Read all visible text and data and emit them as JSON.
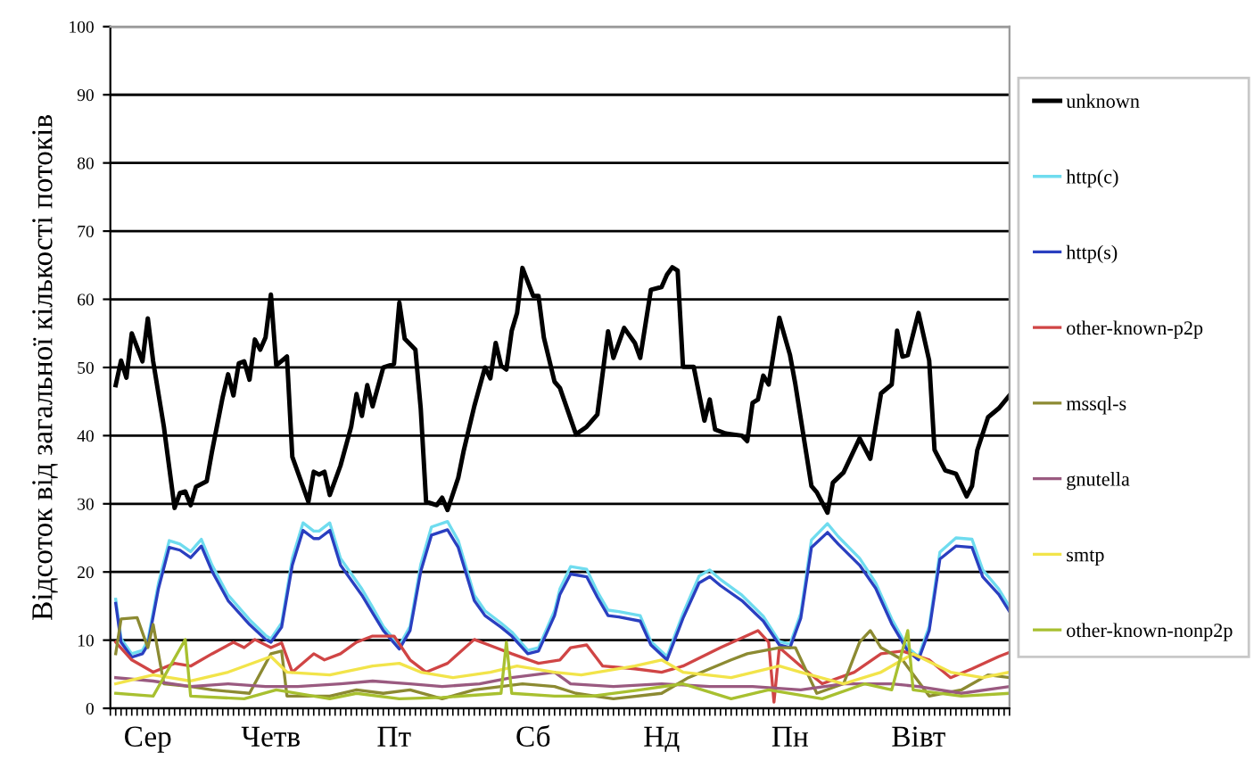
{
  "chart_data": {
    "type": "line",
    "ylabel": "Відсоток від загальної кількості потоків",
    "categories": [
      null,
      null,
      null,
      null,
      null,
      null,
      null,
      "Сер",
      null,
      null,
      null,
      null,
      null,
      null,
      null,
      null,
      null,
      null,
      null,
      null,
      null,
      null,
      null,
      null,
      null,
      null,
      null,
      null,
      null,
      null,
      "Четв",
      null,
      null,
      null,
      null,
      null,
      null,
      null,
      null,
      null,
      null,
      null,
      null,
      null,
      null,
      null,
      null,
      null,
      null,
      null,
      null,
      null,
      null,
      "Пт",
      null,
      null,
      null,
      null,
      null,
      null,
      null,
      null,
      null,
      null,
      null,
      null,
      null,
      null,
      null,
      null,
      null,
      null,
      null,
      null,
      null,
      null,
      null,
      null,
      null,
      "Сб",
      null,
      null,
      null,
      null,
      null,
      null,
      null,
      null,
      null,
      null,
      null,
      null,
      null,
      null,
      null,
      null,
      null,
      null,
      null,
      null,
      null,
      null,
      null,
      "Нд",
      null,
      null,
      null,
      null,
      null,
      null,
      null,
      null,
      null,
      null,
      null,
      null,
      null,
      null,
      null,
      null,
      null,
      null,
      null,
      null,
      null,
      null,
      null,
      "Пн",
      null,
      null,
      null,
      null,
      null,
      null,
      null,
      null,
      null,
      null,
      null,
      null,
      null,
      null,
      null,
      null,
      null,
      null,
      null,
      null,
      null,
      null,
      null,
      "Вівт",
      null,
      null,
      null,
      null,
      null,
      null,
      null,
      null,
      null,
      null,
      null,
      null,
      null,
      null,
      null,
      null,
      null
    ],
    "ylim": [
      0,
      100
    ],
    "yticks": [
      0,
      10,
      20,
      30,
      40,
      50,
      60,
      70,
      80,
      90,
      100
    ],
    "grid": "y",
    "legend": "right",
    "marker": "none",
    "line_style": "solid",
    "series": [
      {
        "name": "unknown",
        "color": "#000000",
        "values": [
          null,
          47.4,
          51,
          48.5,
          55,
          null,
          50.9,
          57.2,
          50.9,
          null,
          41.3,
          null,
          29.4,
          31.6,
          31.8,
          29.8,
          32.5,
          null,
          33.3,
          37.7,
          null,
          45.7,
          49,
          45.9,
          50.6,
          50.9,
          48.2,
          54.1,
          52.6,
          54.4,
          60.7,
          50.3,
          null,
          51.6,
          36.9,
          null,
          null,
          30.3,
          34.7,
          34.3,
          34.7,
          31.3,
          null,
          35.6,
          null,
          41.3,
          46.1,
          42.9,
          47.4,
          44.3,
          null,
          50,
          null,
          50.5,
          59.5,
          54.2,
          null,
          52.6,
          43.9,
          30.3,
          null,
          29.8,
          30.9,
          29.1,
          null,
          33.8,
          37.7,
          null,
          44.3,
          null,
          50,
          48.4,
          53.6,
          50.3,
          49.7,
          55.4,
          58,
          64.6,
          null,
          60.5,
          60.5,
          54.4,
          null,
          47.9,
          47,
          null,
          null,
          40.2,
          null,
          41.3,
          null,
          43.1,
          null,
          55.3,
          51.4,
          null,
          55.8,
          null,
          53.6,
          51.4,
          null,
          61.4,
          null,
          61.8,
          63.6,
          64.7,
          64.2,
          50.1,
          null,
          50.1,
          null,
          42.2,
          45.3,
          40.9,
          null,
          40.3,
          null,
          null,
          40,
          39.2,
          44.8,
          45.3,
          48.8,
          47.5,
          null,
          57.3,
          null,
          51.8,
          47.5,
          null,
          null,
          32.6,
          31.7,
          null,
          28.7,
          33.1,
          null,
          34.6,
          null,
          null,
          39.6,
          null,
          36.6,
          null,
          46.2,
          null,
          47.5,
          55.4,
          51.6,
          51.8,
          null,
          58,
          null,
          51,
          37.9,
          null,
          34.9,
          null,
          34.4,
          null,
          31.1,
          32.6,
          37.9,
          null,
          42.7,
          null,
          44,
          null,
          45.9
        ]
      },
      {
        "name": "http(c)",
        "color": "#6fdcef",
        "values": [
          null,
          16,
          10.2,
          null,
          8,
          null,
          8.5,
          9.9,
          null,
          18.4,
          null,
          24.6,
          null,
          24.1,
          null,
          23,
          null,
          24.8,
          null,
          21,
          null,
          null,
          16.6,
          null,
          null,
          null,
          13,
          null,
          null,
          10.7,
          10.2,
          null,
          12.5,
          null,
          22,
          null,
          27.2,
          null,
          26,
          26,
          null,
          27.2,
          null,
          22,
          null,
          null,
          null,
          17.5,
          null,
          14.8,
          null,
          12,
          null,
          null,
          9.2,
          null,
          12,
          null,
          21.1,
          null,
          26.6,
          null,
          null,
          27.4,
          null,
          24.6,
          null,
          null,
          16.6,
          null,
          14.3,
          null,
          null,
          12.5,
          null,
          11.2,
          null,
          null,
          8.5,
          null,
          8.9,
          null,
          null,
          14.3,
          17.5,
          null,
          20.8,
          null,
          null,
          20.4,
          null,
          17.1,
          null,
          14.4,
          null,
          14.2,
          null,
          null,
          null,
          13.6,
          null,
          9.8,
          null,
          null,
          7.6,
          null,
          null,
          13.9,
          null,
          null,
          19.4,
          null,
          20.3,
          null,
          18.9,
          null,
          null,
          null,
          16.6,
          null,
          null,
          null,
          13.5,
          null,
          null,
          9.8,
          null,
          9.4,
          null,
          13.9,
          null,
          24.7,
          null,
          null,
          27.1,
          null,
          25.2,
          null,
          null,
          null,
          22,
          null,
          null,
          18.4,
          null,
          null,
          13.1,
          null,
          null,
          8.9,
          null,
          7.6,
          null,
          12,
          null,
          22.9,
          null,
          null,
          25,
          null,
          null,
          24.8,
          null,
          20.3,
          null,
          null,
          17.5,
          null,
          14.9
        ]
      },
      {
        "name": "http(s)",
        "color": "#2a3fc0",
        "values": [
          null,
          15.4,
          9.7,
          null,
          7.5,
          null,
          8,
          9.3,
          null,
          17.6,
          null,
          23.6,
          null,
          23.2,
          null,
          22.1,
          null,
          23.8,
          null,
          20.1,
          null,
          null,
          15.8,
          null,
          null,
          null,
          12.3,
          null,
          null,
          10.1,
          9.7,
          null,
          11.9,
          null,
          21,
          null,
          26.1,
          null,
          24.9,
          24.9,
          null,
          26.1,
          null,
          21,
          null,
          null,
          null,
          16.6,
          null,
          14,
          null,
          11.4,
          null,
          null,
          8.7,
          null,
          11.4,
          null,
          20.1,
          null,
          25.4,
          null,
          null,
          26.2,
          null,
          23.6,
          null,
          null,
          15.8,
          null,
          13.6,
          null,
          null,
          11.9,
          null,
          10.6,
          null,
          null,
          8,
          null,
          8.4,
          null,
          null,
          13.6,
          16.7,
          null,
          19.7,
          null,
          null,
          19.3,
          null,
          16.3,
          null,
          13.6,
          null,
          13.4,
          null,
          null,
          null,
          12.8,
          null,
          9.3,
          null,
          null,
          7.1,
          null,
          null,
          13.2,
          null,
          null,
          18.4,
          null,
          19.3,
          null,
          18,
          null,
          null,
          null,
          15.8,
          null,
          null,
          null,
          12.8,
          null,
          null,
          9.3,
          null,
          8.9,
          null,
          13.2,
          null,
          23.6,
          null,
          null,
          25.8,
          null,
          24.1,
          null,
          null,
          null,
          21,
          null,
          null,
          17.6,
          null,
          null,
          12.4,
          null,
          null,
          8.4,
          null,
          7.1,
          null,
          11.4,
          null,
          21.9,
          null,
          null,
          23.8,
          null,
          null,
          23.6,
          null,
          19.3,
          null,
          null,
          16.7,
          null,
          14.2
        ]
      },
      {
        "name": "other-known-p2p",
        "color": "#d04545",
        "values": [
          null,
          9.7,
          null,
          null,
          7.1,
          null,
          null,
          null,
          5.3,
          null,
          null,
          null,
          6.6,
          null,
          null,
          6.2,
          null,
          null,
          null,
          8,
          null,
          null,
          null,
          9.7,
          null,
          8.9,
          null,
          10.1,
          null,
          null,
          8.9,
          null,
          9.6,
          null,
          5.3,
          null,
          null,
          null,
          8,
          null,
          7.1,
          null,
          null,
          8,
          null,
          null,
          9.7,
          null,
          null,
          10.6,
          null,
          null,
          null,
          10.6,
          null,
          null,
          7.1,
          null,
          null,
          5.3,
          null,
          null,
          null,
          6.6,
          null,
          null,
          null,
          null,
          10.1,
          null,
          null,
          null,
          8.9,
          null,
          null,
          8,
          null,
          null,
          null,
          null,
          6.6,
          null,
          null,
          null,
          7.1,
          null,
          8.9,
          null,
          null,
          9.3,
          null,
          null,
          6.2,
          null,
          null,
          null,
          null,
          null,
          5.8,
          null,
          null,
          null,
          null,
          5.3,
          null,
          null,
          null,
          6.2,
          null,
          null,
          null,
          null,
          null,
          null,
          8.9,
          null,
          null,
          null,
          null,
          null,
          null,
          11.4,
          null,
          9.7,
          0.9,
          8.9,
          null,
          null,
          null,
          6.2,
          null,
          null,
          null,
          3.6,
          null,
          null,
          null,
          null,
          null,
          5.3,
          null,
          null,
          null,
          null,
          8,
          null,
          null,
          null,
          8.4,
          null,
          null,
          null,
          null,
          7.1,
          null,
          null,
          null,
          4.5,
          null,
          null,
          null,
          5.8,
          null,
          null,
          null,
          null,
          7.6,
          null,
          8.2
        ]
      },
      {
        "name": "mssql-s",
        "color": "#8c8a32",
        "values": [
          null,
          8,
          13.1,
          null,
          null,
          13.3,
          null,
          8.9,
          12.3,
          null,
          3.6,
          null,
          null,
          null,
          null,
          3.2,
          null,
          null,
          null,
          2.7,
          null,
          null,
          null,
          null,
          null,
          null,
          2.2,
          null,
          null,
          null,
          8,
          null,
          8.4,
          1.8,
          null,
          null,
          null,
          null,
          null,
          null,
          null,
          1.8,
          null,
          null,
          null,
          null,
          2.7,
          null,
          null,
          null,
          null,
          2.2,
          null,
          null,
          null,
          null,
          2.7,
          null,
          null,
          null,
          null,
          null,
          1.4,
          null,
          null,
          null,
          null,
          null,
          2.7,
          null,
          null,
          null,
          null,
          3.2,
          null,
          null,
          null,
          3.6,
          null,
          null,
          null,
          null,
          null,
          3.2,
          null,
          null,
          null,
          2.2,
          null,
          null,
          null,
          null,
          null,
          null,
          1.4,
          null,
          null,
          null,
          null,
          null,
          null,
          null,
          null,
          2.2,
          null,
          null,
          null,
          null,
          4.5,
          null,
          null,
          null,
          null,
          null,
          null,
          null,
          7.1,
          null,
          null,
          8,
          null,
          null,
          null,
          null,
          null,
          8.9,
          null,
          null,
          8.9,
          null,
          null,
          null,
          2.2,
          null,
          null,
          null,
          null,
          3.6,
          null,
          null,
          9.7,
          null,
          11.4,
          null,
          8.9,
          null,
          null,
          null,
          7.1,
          null,
          null,
          null,
          null,
          1.8,
          null,
          null,
          null,
          null,
          null,
          2.7,
          null,
          null,
          null,
          null,
          4.9,
          null,
          null,
          null,
          4.5
        ]
      },
      {
        "name": "gnutella",
        "color": "#9a5a80",
        "values": [
          null,
          4.5,
          null,
          null,
          null,
          null,
          null,
          null,
          4,
          null,
          null,
          null,
          null,
          null,
          null,
          3.2,
          null,
          null,
          null,
          null,
          null,
          null,
          3.6,
          null,
          null,
          null,
          null,
          null,
          null,
          3.2,
          null,
          null,
          null,
          null,
          null,
          3.2,
          null,
          null,
          null,
          null,
          null,
          null,
          null,
          3.6,
          null,
          null,
          null,
          null,
          null,
          4,
          null,
          null,
          null,
          null,
          null,
          null,
          3.6,
          null,
          null,
          null,
          null,
          null,
          3.2,
          null,
          null,
          null,
          null,
          null,
          null,
          3.6,
          null,
          null,
          null,
          null,
          null,
          4.5,
          null,
          null,
          null,
          null,
          null,
          null,
          null,
          5.3,
          null,
          null,
          3.6,
          null,
          null,
          null,
          null,
          null,
          null,
          null,
          3.2,
          null,
          null,
          null,
          null,
          null,
          null,
          null,
          null,
          3.6,
          null,
          null,
          null,
          null,
          null,
          null,
          null,
          null,
          3.2,
          null,
          null,
          null,
          null,
          null,
          null,
          null,
          3.2,
          null,
          null,
          null,
          null,
          null,
          null,
          null,
          null,
          2.7,
          null,
          null,
          null,
          null,
          null,
          null,
          null,
          3.6,
          null,
          null,
          null,
          null,
          null,
          null,
          null,
          null,
          3.6,
          null,
          null,
          null,
          null,
          3.2,
          null,
          null,
          null,
          null,
          null,
          null,
          null,
          2.2,
          null,
          null,
          null,
          null,
          null,
          null,
          null,
          null,
          3.2
        ]
      },
      {
        "name": "smtp",
        "color": "#f2e44a",
        "values": [
          null,
          3.6,
          null,
          null,
          null,
          null,
          null,
          null,
          4.9,
          null,
          null,
          null,
          null,
          null,
          null,
          4,
          null,
          null,
          null,
          null,
          null,
          null,
          5.3,
          null,
          null,
          null,
          null,
          null,
          null,
          null,
          7.6,
          null,
          null,
          5.3,
          null,
          null,
          null,
          null,
          null,
          null,
          null,
          4.9,
          null,
          null,
          null,
          null,
          null,
          null,
          null,
          6.2,
          null,
          null,
          null,
          null,
          6.6,
          null,
          null,
          null,
          5.3,
          null,
          null,
          null,
          null,
          null,
          4.5,
          null,
          null,
          null,
          null,
          null,
          null,
          5.3,
          null,
          null,
          null,
          null,
          6.2,
          null,
          null,
          null,
          null,
          null,
          null,
          5.3,
          null,
          null,
          null,
          null,
          4.9,
          null,
          null,
          null,
          null,
          null,
          null,
          null,
          null,
          null,
          6.2,
          null,
          null,
          null,
          null,
          7.1,
          null,
          null,
          null,
          5.3,
          null,
          null,
          null,
          null,
          null,
          null,
          null,
          null,
          4.5,
          null,
          null,
          null,
          null,
          null,
          null,
          null,
          null,
          6.2,
          null,
          null,
          null,
          5.3,
          null,
          null,
          null,
          null,
          null,
          null,
          null,
          3.6,
          null,
          null,
          null,
          null,
          null,
          null,
          5.3,
          null,
          null,
          null,
          null,
          null,
          8,
          null,
          null,
          null,
          null,
          null,
          null,
          5.3,
          null,
          null,
          null,
          null,
          null,
          4.5,
          null,
          null,
          null,
          null,
          5.3
        ]
      },
      {
        "name": "other-known-nonp2p",
        "color": "#a8c030",
        "values": [
          null,
          2.2,
          null,
          null,
          null,
          null,
          null,
          null,
          1.8,
          null,
          null,
          null,
          null,
          null,
          10.1,
          1.8,
          null,
          null,
          null,
          null,
          null,
          null,
          null,
          null,
          null,
          1.4,
          null,
          null,
          null,
          null,
          null,
          2.7,
          null,
          null,
          null,
          null,
          null,
          null,
          null,
          null,
          null,
          1.4,
          null,
          null,
          null,
          null,
          2.2,
          null,
          null,
          null,
          null,
          null,
          null,
          null,
          1.4,
          null,
          null,
          null,
          null,
          null,
          null,
          null,
          1.6,
          null,
          null,
          null,
          null,
          null,
          null,
          null,
          null,
          null,
          null,
          2.2,
          9.7,
          2.2,
          null,
          null,
          null,
          null,
          null,
          null,
          null,
          1.8,
          null,
          null,
          null,
          null,
          null,
          null,
          1.8,
          null,
          null,
          null,
          null,
          null,
          null,
          null,
          null,
          2.7,
          null,
          null,
          null,
          null,
          null,
          null,
          null,
          3.6,
          null,
          null,
          null,
          null,
          null,
          null,
          null,
          null,
          1.4,
          null,
          null,
          null,
          null,
          null,
          null,
          2.7,
          null,
          null,
          null,
          null,
          null,
          null,
          null,
          null,
          null,
          1.4,
          null,
          null,
          null,
          null,
          null,
          null,
          null,
          3.6,
          null,
          null,
          null,
          null,
          2.7,
          null,
          null,
          11.4,
          2.7,
          null,
          null,
          null,
          null,
          null,
          null,
          null,
          null,
          1.8,
          null,
          null,
          null,
          null,
          null,
          null,
          null,
          null,
          2.2
        ]
      }
    ]
  }
}
